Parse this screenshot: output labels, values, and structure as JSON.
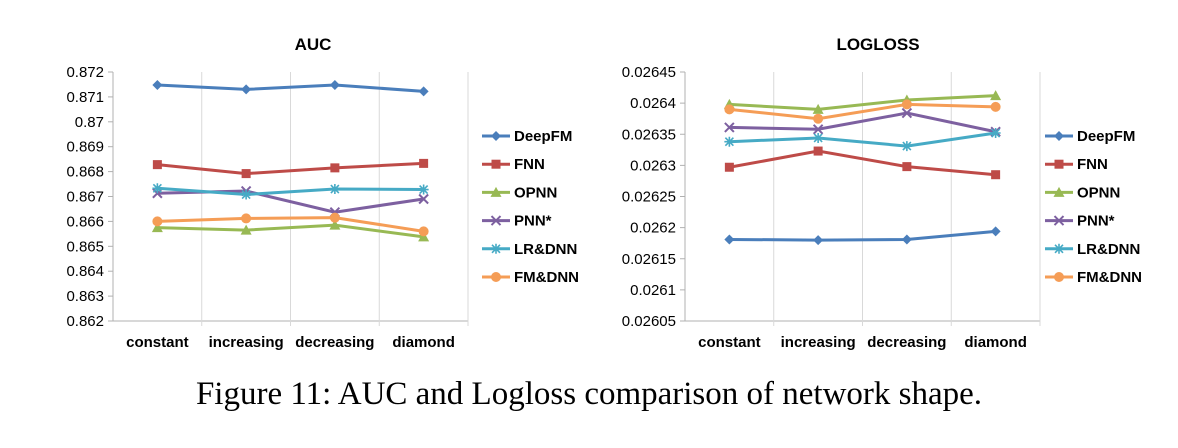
{
  "caption": "Figure 11: AUC and Logloss comparison of network shape.",
  "colors": {
    "DeepFM": "#4a7ebb",
    "FNN": "#be4b48",
    "OPNN": "#98b954",
    "PNN*": "#7d60a0",
    "LR&DNN": "#46aac5",
    "FM&DNN": "#f59d56",
    "axis": "#b0b0b0",
    "grid": "#d9d9d9"
  },
  "chart_data": [
    {
      "type": "line",
      "title": "AUC",
      "categories": [
        "constant",
        "increasing",
        "decreasing",
        "diamond"
      ],
      "ylim": [
        0.862,
        0.872
      ],
      "yticks": [
        "0.872",
        "0.871",
        "0.87",
        "0.869",
        "0.868",
        "0.867",
        "0.866",
        "0.865",
        "0.864",
        "0.863",
        "0.862"
      ],
      "grid": "vertical separators",
      "legend": "right",
      "series": [
        {
          "name": "DeepFM",
          "marker": "diamond",
          "values": [
            0.87148,
            0.8713,
            0.87148,
            0.87122
          ]
        },
        {
          "name": "FNN",
          "marker": "square",
          "values": [
            0.86828,
            0.86792,
            0.86815,
            0.86833
          ]
        },
        {
          "name": "OPNN",
          "marker": "triangle",
          "values": [
            0.86575,
            0.86565,
            0.86585,
            0.86538
          ]
        },
        {
          "name": "PNN*",
          "marker": "x",
          "values": [
            0.86713,
            0.86722,
            0.86637,
            0.8669
          ]
        },
        {
          "name": "LR&DNN",
          "marker": "star",
          "values": [
            0.86733,
            0.86708,
            0.8673,
            0.86728
          ]
        },
        {
          "name": "FM&DNN",
          "marker": "circle",
          "values": [
            0.866,
            0.86612,
            0.86615,
            0.8656
          ]
        }
      ]
    },
    {
      "type": "line",
      "title": "LOGLOSS",
      "categories": [
        "constant",
        "increasing",
        "decreasing",
        "diamond"
      ],
      "ylim": [
        0.02605,
        0.02645
      ],
      "yticks": [
        "0.02645",
        "0.0264",
        "0.02635",
        "0.0263",
        "0.02625",
        "0.0262",
        "0.02615",
        "0.0261",
        "0.02605"
      ],
      "grid": "vertical separators",
      "legend": "right",
      "series": [
        {
          "name": "DeepFM",
          "marker": "diamond",
          "values": [
            0.026181,
            0.02618,
            0.026181,
            0.026194
          ]
        },
        {
          "name": "FNN",
          "marker": "square",
          "values": [
            0.026297,
            0.026323,
            0.026298,
            0.026285
          ]
        },
        {
          "name": "OPNN",
          "marker": "triangle",
          "values": [
            0.026398,
            0.02639,
            0.026405,
            0.026412
          ]
        },
        {
          "name": "PNN*",
          "marker": "x",
          "values": [
            0.026361,
            0.026358,
            0.026384,
            0.026354
          ]
        },
        {
          "name": "LR&DNN",
          "marker": "star",
          "values": [
            0.026338,
            0.026344,
            0.026331,
            0.026352
          ]
        },
        {
          "name": "FM&DNN",
          "marker": "circle",
          "values": [
            0.02639,
            0.026375,
            0.026398,
            0.026394
          ]
        }
      ]
    }
  ]
}
